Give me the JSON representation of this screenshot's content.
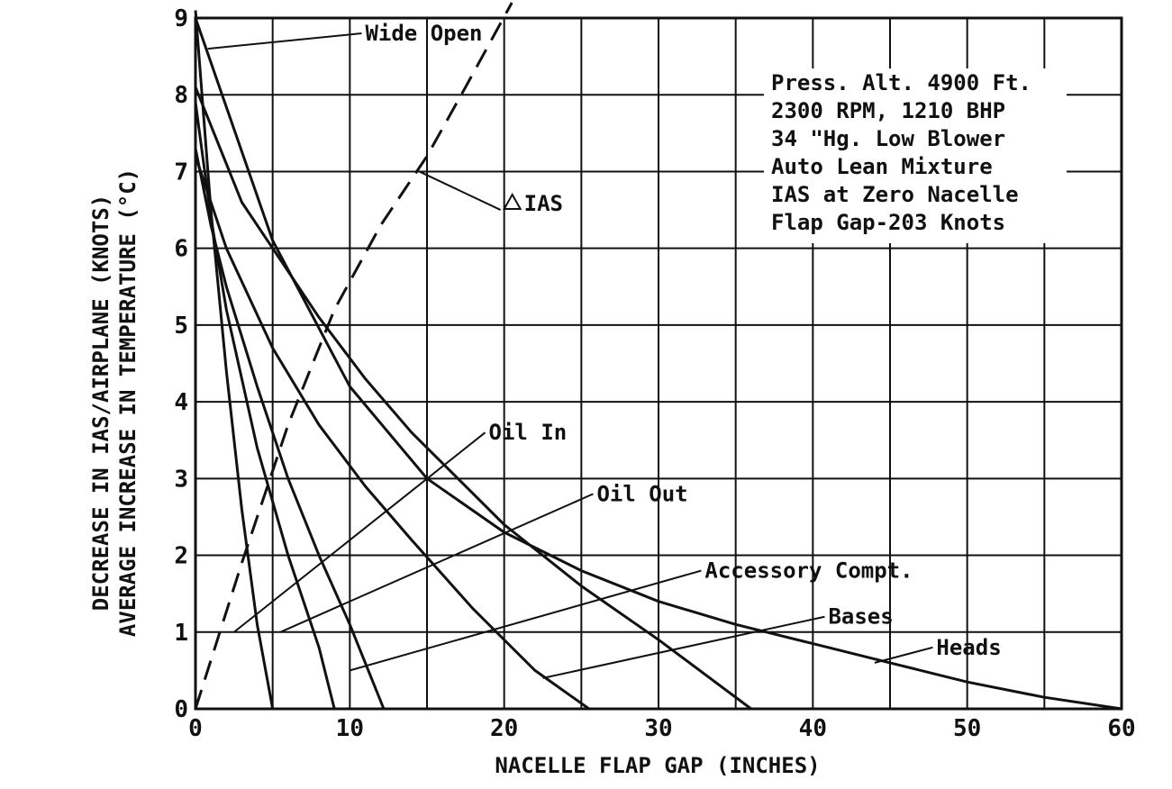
{
  "chart_data": {
    "type": "line",
    "title": "",
    "xlabel": "NACELLE FLAP GAP  (INCHES)",
    "ylabel_line1": "DECREASE IN IAS/AIRPLANE (KNOTS)",
    "ylabel_line2": "AVERAGE INCREASE IN TEMPERATURE (°C)",
    "xlim": [
      0,
      60
    ],
    "ylim": [
      0,
      9
    ],
    "x_ticks": [
      "0",
      "10",
      "20",
      "30",
      "40",
      "50",
      "60"
    ],
    "y_ticks": [
      "0",
      "1",
      "2",
      "3",
      "4",
      "5",
      "6",
      "7",
      "8",
      "9"
    ],
    "grid": true,
    "series": [
      {
        "name": "Wide Open",
        "x": [
          0,
          1,
          2,
          3,
          4,
          5
        ],
        "y": [
          9.1,
          6.5,
          4.4,
          2.6,
          1.1,
          0
        ]
      },
      {
        "name": "Oil In",
        "x": [
          0,
          1,
          2,
          4,
          6,
          8,
          9
        ],
        "y": [
          7.9,
          6.4,
          5.2,
          3.4,
          2.0,
          0.8,
          0
        ]
      },
      {
        "name": "Oil Out",
        "x": [
          0,
          1,
          2,
          4,
          6,
          8,
          10,
          12.2
        ],
        "y": [
          7.3,
          6.3,
          5.5,
          4.2,
          3.0,
          2.0,
          1.1,
          0
        ]
      },
      {
        "name": "Accessory Compt.",
        "x": [
          0,
          2,
          5,
          8,
          11,
          14,
          18,
          22,
          25.5
        ],
        "y": [
          7.2,
          6.0,
          4.7,
          3.7,
          2.9,
          2.2,
          1.3,
          0.5,
          0
        ]
      },
      {
        "name": "Bases",
        "x": [
          0,
          3,
          5,
          8,
          11,
          14,
          17,
          20,
          25,
          30,
          36
        ],
        "y": [
          8.1,
          6.6,
          6.0,
          5.1,
          4.3,
          3.6,
          3.0,
          2.4,
          1.6,
          0.9,
          0
        ]
      },
      {
        "name": "Heads",
        "x": [
          0,
          5,
          10,
          15,
          20,
          25,
          30,
          35,
          40,
          45,
          50,
          55,
          60
        ],
        "y": [
          9.0,
          6.1,
          4.2,
          3.0,
          2.3,
          1.8,
          1.4,
          1.1,
          0.85,
          0.6,
          0.35,
          0.15,
          0
        ]
      },
      {
        "name": "IAS",
        "x": [
          0,
          3,
          6,
          9,
          12,
          15,
          17.5,
          20.5
        ],
        "y": [
          0,
          1.9,
          3.7,
          5.2,
          6.3,
          7.2,
          8.1,
          9.2
        ],
        "dashed": true
      }
    ],
    "annotations": [
      {
        "label": "Wide Open",
        "x": 11,
        "y": 8.8
      },
      {
        "label": "IAS",
        "x": 20,
        "y": 6.5
      },
      {
        "label": "Oil In",
        "x": 19,
        "y": 3.6
      },
      {
        "label": "Oil Out",
        "x": 26,
        "y": 2.8
      },
      {
        "label": "Accessory Compt.",
        "x": 33,
        "y": 1.8
      },
      {
        "label": "Bases",
        "x": 41,
        "y": 1.2
      },
      {
        "label": "Heads",
        "x": 48,
        "y": 0.8
      }
    ],
    "legend_note": [
      "Press. Alt. 4900 Ft.",
      "2300 RPM, 1210 BHP",
      "34 \"Hg. Low Blower",
      "Auto Lean Mixture",
      "IAS at Zero Nacelle",
      "Flap Gap-203 Knots"
    ]
  }
}
